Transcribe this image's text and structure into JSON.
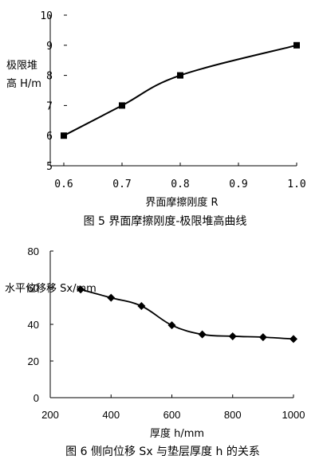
{
  "chart_data": [
    {
      "type": "line",
      "caption": "图 5 界面摩擦刚度-极限堆高曲线",
      "xlabel": "界面摩擦刚度 R",
      "ylabel_lines": [
        "极限堆",
        "高 H/m"
      ],
      "x": [
        0.6,
        0.7,
        0.8,
        1.0
      ],
      "y": [
        6,
        7,
        8,
        9
      ],
      "xlim": [
        0.6,
        1.0
      ],
      "ylim": [
        5,
        10
      ],
      "xticks": [
        "0.6",
        "0.7",
        "0.8",
        "0.9",
        "1.0"
      ],
      "yticks": [
        "5",
        "6",
        "7",
        "8",
        "9",
        "10"
      ],
      "marker": "square",
      "grid": false
    },
    {
      "type": "line",
      "caption": "图 6 侧向位移 Sx 与垫层厚度 h 的关系",
      "xlabel": "厚度 h/mm",
      "ylabel": "水平位移移 Sx/mm",
      "x": [
        300,
        400,
        500,
        600,
        700,
        800,
        900,
        1000
      ],
      "y": [
        59,
        54.5,
        50,
        39.5,
        34.5,
        33.5,
        33,
        32
      ],
      "xlim": [
        200,
        1000
      ],
      "ylim": [
        0,
        80
      ],
      "xticks": [
        "200",
        "400",
        "600",
        "800",
        "1000"
      ],
      "yticks": [
        "0",
        "20",
        "40",
        "60",
        "80"
      ],
      "marker": "diamond",
      "grid": false
    }
  ]
}
